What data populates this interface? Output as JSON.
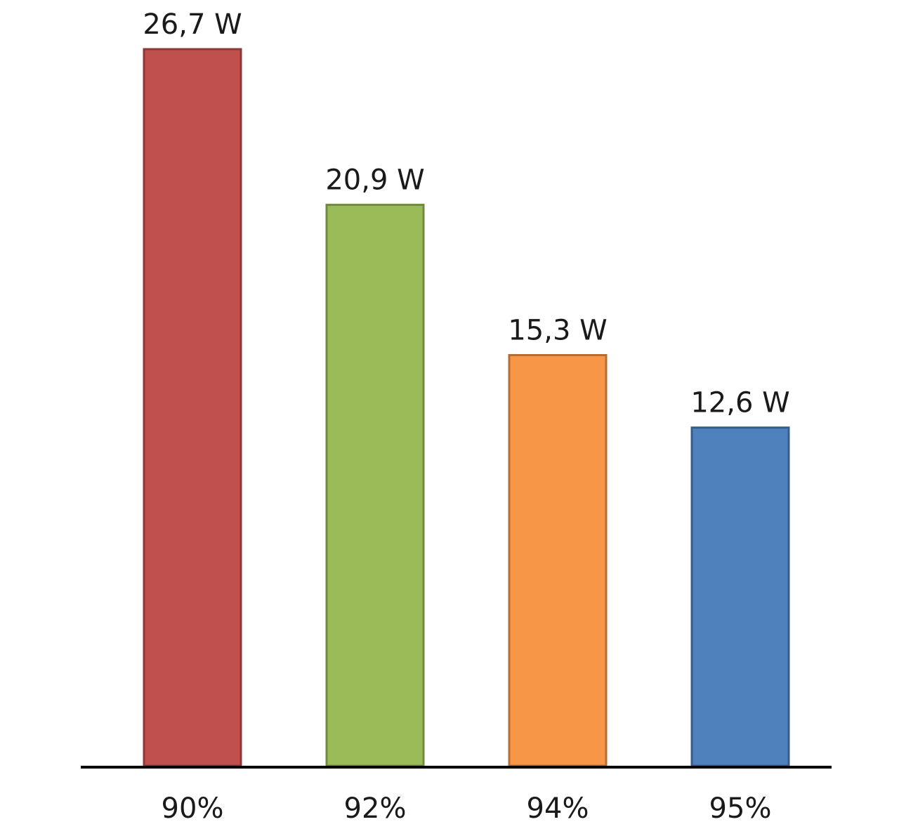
{
  "chart_data": {
    "type": "bar",
    "categories": [
      "90%",
      "92%",
      "94%",
      "95%"
    ],
    "values": [
      26.7,
      20.9,
      15.3,
      12.6
    ],
    "data_labels": [
      "26,7 W",
      "20,9 W",
      "15,3 W",
      "12,6 W"
    ],
    "colors": [
      "#c0504d",
      "#9bbb59",
      "#f79646",
      "#4f81bd"
    ],
    "border_colors": [
      "#8c3836",
      "#71893f",
      "#b66d31",
      "#385d8a"
    ],
    "axis_color": "#000000",
    "title": "",
    "xlabel": "",
    "ylabel": "",
    "ylim": [
      0,
      26.7
    ],
    "grid": false,
    "legend": "none"
  }
}
